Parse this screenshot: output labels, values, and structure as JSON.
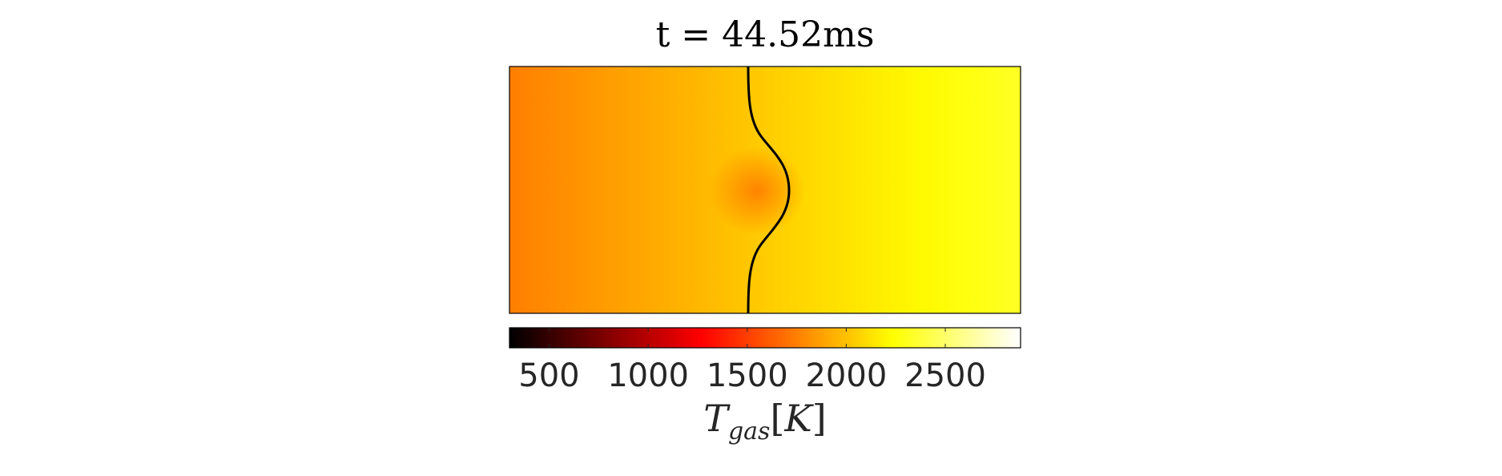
{
  "chart_data": {
    "type": "heatmap",
    "title_prefix": "t = ",
    "title_value": "44.52",
    "title_unit": "ms",
    "colormap": "hot",
    "colorbar": {
      "orientation": "horizontal",
      "placement": "below",
      "range": [
        300,
        2880
      ],
      "ticks": [
        500,
        1000,
        1500,
        2000,
        2500
      ],
      "tick_labels": [
        "500",
        "1000",
        "1500",
        "2000",
        "2500"
      ],
      "label_symbol": "T",
      "label_subscript": "gas",
      "label_unit_open": "[",
      "label_unit": "K",
      "label_unit_close": "]"
    },
    "field": {
      "left_value": 1750,
      "right_value": 2330,
      "hotspot_value": 1720
    },
    "contour": {
      "color": "#000000",
      "description_free": true
    },
    "colors": {
      "contour": "#000000",
      "frame": "#000000",
      "text": "#262626"
    }
  }
}
